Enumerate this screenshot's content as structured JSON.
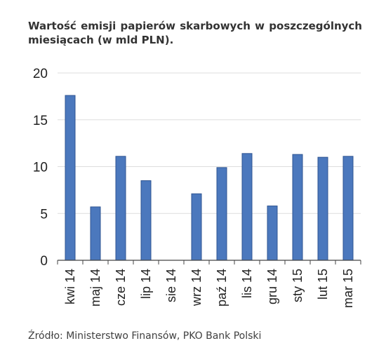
{
  "chart_data": {
    "type": "bar",
    "title": "Wartość emisji papierów skarbowych w poszczególnych miesiącach (w mld PLN).",
    "source": "Źródło: Ministerstwo Finansów, PKO Bank Polski",
    "categories": [
      "kwi 14",
      "maj 14",
      "cze 14",
      "lip 14",
      "sie 14",
      "wrz 14",
      "paź 14",
      "lis 14",
      "gru 14",
      "sty 15",
      "lut 15",
      "mar 15"
    ],
    "values": [
      17.6,
      5.7,
      11.1,
      8.5,
      0,
      7.1,
      9.9,
      11.4,
      5.8,
      11.3,
      11.0,
      11.1
    ],
    "yticks": [
      0,
      5,
      10,
      15,
      20
    ],
    "ylim": [
      0,
      20
    ],
    "xlabel": "",
    "ylabel": "",
    "grid": true,
    "colors": {
      "bar": "#4b78bd",
      "bar_stroke": "#2f5592",
      "grid": "#dddddd",
      "axis": "#444444"
    }
  }
}
